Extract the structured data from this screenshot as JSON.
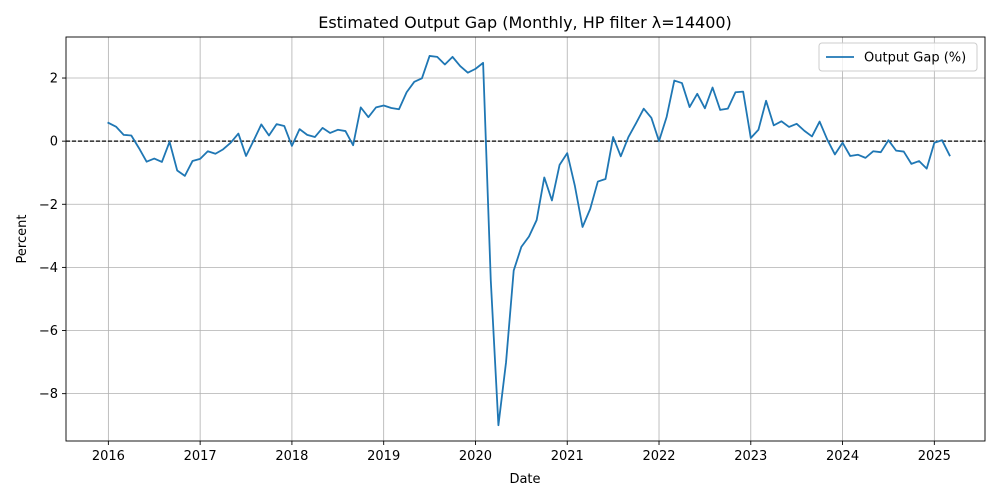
{
  "chart_data": {
    "type": "line",
    "title": "Estimated Output Gap (Monthly, HP filter λ=14400)",
    "xlabel": "Date",
    "ylabel": "Percent",
    "xlim": [
      "2015-07-15",
      "2025-07-20"
    ],
    "ylim": [
      -9.5,
      3.3
    ],
    "x_ticks": [
      "2016",
      "2017",
      "2018",
      "2019",
      "2020",
      "2021",
      "2022",
      "2023",
      "2024",
      "2025"
    ],
    "y_ticks": [
      2,
      0,
      -2,
      -4,
      -6,
      -8
    ],
    "y_tick_labels": [
      "2",
      "0",
      "−2",
      "−4",
      "−6",
      "−8"
    ],
    "grid": true,
    "legend_position": "top-right",
    "reference_line": {
      "y": 0,
      "style": "dashed",
      "color": "#000000"
    },
    "colors": {
      "series": "#1f77b4",
      "grid": "#b0b0b0"
    },
    "series": [
      {
        "name": "Output Gap (%)",
        "x": [
          "2016-01",
          "2016-02",
          "2016-03",
          "2016-04",
          "2016-05",
          "2016-06",
          "2016-07",
          "2016-08",
          "2016-09",
          "2016-10",
          "2016-11",
          "2016-12",
          "2017-01",
          "2017-02",
          "2017-03",
          "2017-04",
          "2017-05",
          "2017-06",
          "2017-07",
          "2017-08",
          "2017-09",
          "2017-10",
          "2017-11",
          "2017-12",
          "2018-01",
          "2018-02",
          "2018-03",
          "2018-04",
          "2018-05",
          "2018-06",
          "2018-07",
          "2018-08",
          "2018-09",
          "2018-10",
          "2018-11",
          "2018-12",
          "2019-01",
          "2019-02",
          "2019-03",
          "2019-04",
          "2019-05",
          "2019-06",
          "2019-07",
          "2019-08",
          "2019-09",
          "2019-10",
          "2019-11",
          "2019-12",
          "2020-01",
          "2020-02",
          "2020-03",
          "2020-04",
          "2020-05",
          "2020-06",
          "2020-07",
          "2020-08",
          "2020-09",
          "2020-10",
          "2020-11",
          "2020-12",
          "2021-01",
          "2021-02",
          "2021-03",
          "2021-04",
          "2021-05",
          "2021-06",
          "2021-07",
          "2021-08",
          "2021-09",
          "2021-10",
          "2021-11",
          "2021-12",
          "2022-01",
          "2022-02",
          "2022-03",
          "2022-04",
          "2022-05",
          "2022-06",
          "2022-07",
          "2022-08",
          "2022-09",
          "2022-10",
          "2022-11",
          "2022-12",
          "2023-01",
          "2023-02",
          "2023-03",
          "2023-04",
          "2023-05",
          "2023-06",
          "2023-07",
          "2023-08",
          "2023-09",
          "2023-10",
          "2023-11",
          "2023-12",
          "2024-01",
          "2024-02",
          "2024-03",
          "2024-04",
          "2024-05",
          "2024-06",
          "2024-07",
          "2024-08",
          "2024-09",
          "2024-10",
          "2024-11",
          "2024-12",
          "2025-01",
          "2025-02",
          "2025-03"
        ],
        "values": [
          0.58,
          0.46,
          0.2,
          0.18,
          -0.22,
          -0.65,
          -0.55,
          -0.66,
          -0.02,
          -0.93,
          -1.1,
          -0.63,
          -0.56,
          -0.32,
          -0.4,
          -0.26,
          -0.05,
          0.24,
          -0.47,
          0.02,
          0.53,
          0.18,
          0.54,
          0.48,
          -0.15,
          0.38,
          0.2,
          0.13,
          0.42,
          0.26,
          0.36,
          0.32,
          -0.13,
          1.07,
          0.76,
          1.07,
          1.13,
          1.05,
          1.01,
          1.55,
          1.88,
          1.99,
          2.7,
          2.67,
          2.43,
          2.67,
          2.38,
          2.17,
          2.29,
          2.48,
          -4.4,
          -9.0,
          -7.0,
          -4.1,
          -3.35,
          -3.02,
          -2.5,
          -1.15,
          -1.88,
          -0.75,
          -0.38,
          -1.42,
          -2.72,
          -2.15,
          -1.28,
          -1.2,
          0.13,
          -0.48,
          0.13,
          0.57,
          1.03,
          0.74,
          0.0,
          0.77,
          1.92,
          1.84,
          1.08,
          1.5,
          1.04,
          1.7,
          0.99,
          1.03,
          1.55,
          1.57,
          0.1,
          0.36,
          1.28,
          0.5,
          0.63,
          0.45,
          0.55,
          0.33,
          0.15,
          0.62,
          0.05,
          -0.42,
          -0.05,
          -0.47,
          -0.43,
          -0.53,
          -0.32,
          -0.35,
          0.03,
          -0.3,
          -0.33,
          -0.72,
          -0.63,
          -0.87,
          -0.05,
          0.03,
          -0.45
        ]
      }
    ]
  }
}
